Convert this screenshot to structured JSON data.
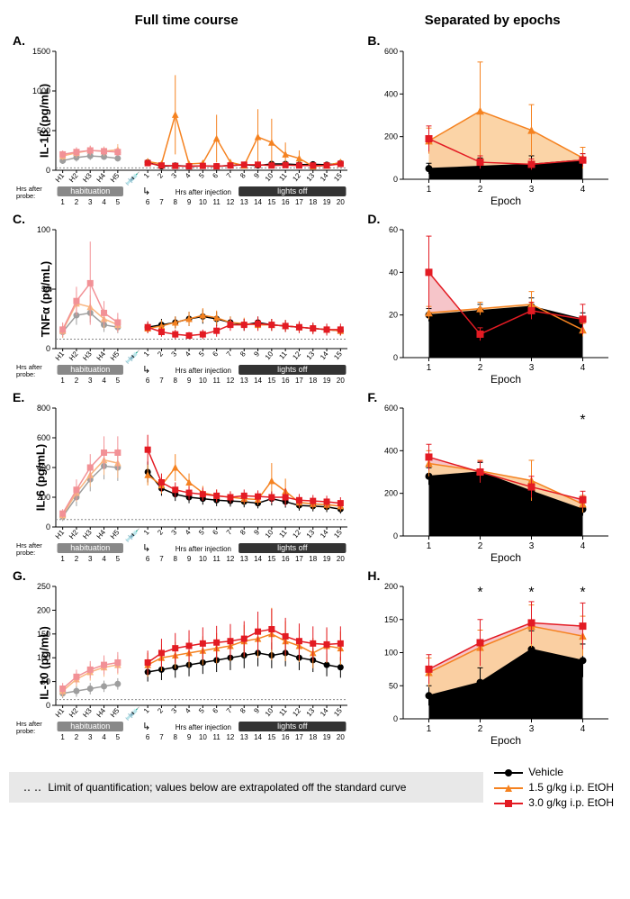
{
  "headers": {
    "left": "Full time course",
    "right": "Separated by epochs"
  },
  "colors": {
    "vehicle": "#000000",
    "etoh15": "#f58220",
    "etoh30": "#e31b23",
    "vehicle_pale": "#9e9e9e",
    "etoh15_pale": "#f9b57f",
    "etoh30_pale": "#f29196",
    "fill_black": "#000000",
    "fill_orange": "#fbcf9d",
    "fill_pink": "#f5bfc3",
    "bg": "#ffffff"
  },
  "legend": {
    "footnote": "Limit of quantification; values below\nare extrapolated off the standard curve",
    "items": [
      {
        "label": "Vehicle",
        "color": "#000000",
        "marker": "circle"
      },
      {
        "label": "1.5 g/kg i.p. EtOH",
        "color": "#f58220",
        "marker": "triangle"
      },
      {
        "label": "3.0 g/kg i.p. EtOH",
        "color": "#e31b23",
        "marker": "square"
      }
    ]
  },
  "rows": [
    {
      "ylabel": "IL-1β (pg/mL)",
      "left": {
        "letter": "A.",
        "ylim": [
          0,
          1500
        ],
        "yticks": [
          0,
          500,
          1000,
          1500
        ],
        "loq": 30,
        "hab": {
          "x": [
            "H1",
            "H2",
            "H3",
            "H4",
            "H5"
          ],
          "vehicle": [
            120,
            160,
            180,
            170,
            150
          ],
          "etoh15": [
            180,
            220,
            250,
            240,
            260
          ],
          "etoh30": [
            200,
            230,
            250,
            240,
            230
          ],
          "err_v": [
            40,
            50,
            50,
            40,
            40
          ],
          "err_15": [
            50,
            60,
            60,
            60,
            70
          ],
          "err_30": [
            50,
            60,
            60,
            50,
            50
          ]
        },
        "post": {
          "x": [
            "1",
            "2",
            "3",
            "4",
            "5",
            "6",
            "7",
            "8",
            "9",
            "10",
            "11",
            "12",
            "13",
            "14",
            "15"
          ],
          "vehicle": [
            100,
            50,
            60,
            50,
            55,
            50,
            60,
            70,
            60,
            80,
            80,
            70,
            75,
            70,
            90
          ],
          "etoh15": [
            110,
            80,
            700,
            80,
            90,
            400,
            100,
            60,
            420,
            350,
            200,
            150,
            50,
            60,
            100
          ],
          "etoh30": [
            90,
            60,
            55,
            50,
            55,
            50,
            60,
            70,
            70,
            60,
            65,
            60,
            60,
            60,
            80
          ],
          "err_v": [
            30,
            20,
            25,
            20,
            20,
            20,
            25,
            30,
            25,
            30,
            30,
            25,
            25,
            25,
            30
          ],
          "err_15": [
            40,
            30,
            500,
            30,
            35,
            300,
            40,
            25,
            350,
            300,
            150,
            100,
            25,
            25,
            40
          ],
          "err_30": [
            30,
            25,
            25,
            20,
            20,
            20,
            25,
            30,
            30,
            25,
            25,
            25,
            25,
            25,
            30
          ]
        }
      },
      "right": {
        "letter": "B.",
        "ylim": [
          0,
          600
        ],
        "yticks": [
          0,
          200,
          400,
          600
        ],
        "epochs": [
          1,
          2,
          3,
          4
        ],
        "vehicle": [
          50,
          60,
          70,
          90
        ],
        "etoh15": [
          180,
          320,
          230,
          100
        ],
        "etoh30": [
          190,
          80,
          70,
          90
        ],
        "err_v": [
          25,
          40,
          40,
          30
        ],
        "err_15": [
          60,
          230,
          120,
          50
        ],
        "err_30": [
          60,
          30,
          25,
          30
        ],
        "stars": []
      }
    },
    {
      "ylabel": "TNFα (pg/mL)",
      "left": {
        "letter": "C.",
        "ylim": [
          0,
          100
        ],
        "yticks": [
          0,
          50,
          100
        ],
        "loq": 8,
        "hab": {
          "x": [
            "H1",
            "H2",
            "H3",
            "H4",
            "H5"
          ],
          "vehicle": [
            14,
            28,
            30,
            20,
            18
          ],
          "etoh15": [
            15,
            38,
            35,
            25,
            20
          ],
          "etoh30": [
            16,
            40,
            55,
            30,
            22
          ],
          "err_v": [
            5,
            8,
            8,
            6,
            5
          ],
          "err_15": [
            6,
            10,
            10,
            8,
            6
          ],
          "err_30": [
            6,
            12,
            35,
            10,
            8
          ]
        },
        "post": {
          "x": [
            "1",
            "2",
            "3",
            "4",
            "5",
            "6",
            "7",
            "8",
            "9",
            "10",
            "11",
            "12",
            "13",
            "14",
            "15"
          ],
          "vehicle": [
            18,
            20,
            22,
            25,
            27,
            25,
            22,
            20,
            22,
            20,
            19,
            18,
            17,
            16,
            15
          ],
          "etoh15": [
            17,
            19,
            22,
            25,
            28,
            26,
            22,
            21,
            20,
            20,
            19,
            18,
            17,
            16,
            15
          ],
          "etoh30": [
            18,
            14,
            12,
            11,
            12,
            15,
            20,
            20,
            21,
            20,
            19,
            18,
            17,
            16,
            16
          ],
          "err_v": [
            4,
            5,
            5,
            6,
            6,
            6,
            5,
            5,
            5,
            5,
            5,
            4,
            4,
            4,
            4
          ],
          "err_15": [
            4,
            5,
            5,
            6,
            6,
            6,
            5,
            5,
            5,
            5,
            5,
            4,
            4,
            4,
            4
          ],
          "err_30": [
            5,
            4,
            4,
            3,
            4,
            5,
            5,
            5,
            6,
            5,
            5,
            5,
            5,
            5,
            5
          ]
        }
      },
      "right": {
        "letter": "D.",
        "ylim": [
          0,
          60
        ],
        "yticks": [
          0,
          20,
          40,
          60
        ],
        "epochs": [
          1,
          2,
          3,
          4
        ],
        "vehicle": [
          20,
          22,
          24,
          18
        ],
        "etoh15": [
          21,
          23,
          25,
          13
        ],
        "etoh30": [
          40,
          11,
          22,
          18
        ],
        "err_v": [
          3,
          3,
          4,
          3
        ],
        "err_15": [
          3,
          3,
          6,
          3
        ],
        "err_30": [
          17,
          3,
          4,
          7
        ],
        "stars": []
      }
    },
    {
      "ylabel": "IL-6 (pg/mL)",
      "left": {
        "letter": "E.",
        "ylim": [
          0,
          800
        ],
        "yticks": [
          0,
          200,
          400,
          600,
          800
        ],
        "loq": 50,
        "hab": {
          "x": [
            "H1",
            "H2",
            "H3",
            "H4",
            "H5"
          ],
          "vehicle": [
            70,
            200,
            320,
            410,
            400
          ],
          "etoh15": [
            80,
            230,
            350,
            450,
            430
          ],
          "etoh30": [
            90,
            250,
            400,
            500,
            500
          ],
          "err_v": [
            30,
            60,
            80,
            90,
            90
          ],
          "err_15": [
            30,
            60,
            80,
            100,
            100
          ],
          "err_30": [
            30,
            70,
            90,
            110,
            110
          ]
        },
        "post": {
          "x": [
            "1",
            "2",
            "3",
            "4",
            "5",
            "6",
            "7",
            "8",
            "9",
            "10",
            "11",
            "12",
            "13",
            "14",
            "15"
          ],
          "vehicle": [
            370,
            260,
            220,
            200,
            190,
            180,
            175,
            170,
            160,
            190,
            170,
            145,
            140,
            135,
            120
          ],
          "etoh15": [
            350,
            280,
            400,
            300,
            230,
            210,
            200,
            190,
            185,
            310,
            240,
            165,
            155,
            150,
            140
          ],
          "etoh30": [
            520,
            300,
            250,
            230,
            220,
            210,
            200,
            210,
            205,
            200,
            200,
            180,
            175,
            170,
            160
          ],
          "err_v": [
            70,
            50,
            45,
            40,
            40,
            40,
            38,
            38,
            35,
            45,
            40,
            35,
            35,
            35,
            30
          ],
          "err_15": [
            70,
            55,
            90,
            60,
            46,
            42,
            40,
            38,
            37,
            120,
            85,
            36,
            35,
            35,
            35
          ],
          "err_30": [
            100,
            60,
            50,
            46,
            44,
            42,
            40,
            42,
            41,
            40,
            60,
            42,
            40,
            40,
            40
          ]
        }
      },
      "right": {
        "letter": "F.",
        "ylim": [
          0,
          600
        ],
        "yticks": [
          0,
          200,
          400,
          600
        ],
        "epochs": [
          1,
          2,
          3,
          4
        ],
        "vehicle": [
          280,
          300,
          210,
          125
        ],
        "etoh15": [
          340,
          305,
          260,
          150
        ],
        "etoh30": [
          370,
          300,
          230,
          170
        ],
        "err_v": [
          40,
          45,
          45,
          30
        ],
        "err_15": [
          60,
          50,
          95,
          40
        ],
        "err_30": [
          60,
          50,
          50,
          40
        ],
        "stars": [
          {
            "epoch": 4,
            "y": 540
          }
        ]
      }
    },
    {
      "ylabel": "IL-10 (pg/mL)",
      "left": {
        "letter": "G.",
        "ylim": [
          0,
          250
        ],
        "yticks": [
          0,
          50,
          100,
          150,
          200,
          250
        ],
        "loq": 12,
        "hab": {
          "x": [
            "H1",
            "H2",
            "H3",
            "H4",
            "H5"
          ],
          "vehicle": [
            25,
            30,
            35,
            40,
            45
          ],
          "etoh15": [
            30,
            55,
            70,
            80,
            85
          ],
          "etoh30": [
            35,
            60,
            75,
            85,
            90
          ],
          "err_v": [
            10,
            12,
            12,
            12,
            12
          ],
          "err_15": [
            12,
            15,
            18,
            20,
            20
          ],
          "err_30": [
            12,
            15,
            18,
            20,
            22
          ]
        },
        "post": {
          "x": [
            "1",
            "2",
            "3",
            "4",
            "5",
            "6",
            "7",
            "8",
            "9",
            "10",
            "11",
            "12",
            "13",
            "14",
            "15"
          ],
          "vehicle": [
            70,
            75,
            80,
            85,
            90,
            95,
            100,
            105,
            110,
            105,
            110,
            100,
            95,
            85,
            80
          ],
          "etoh15": [
            85,
            100,
            105,
            110,
            115,
            120,
            125,
            135,
            140,
            150,
            135,
            125,
            110,
            125,
            120
          ],
          "etoh30": [
            90,
            110,
            120,
            125,
            130,
            132,
            135,
            140,
            155,
            160,
            145,
            135,
            130,
            128,
            130
          ],
          "err_v": [
            20,
            22,
            22,
            24,
            24,
            25,
            26,
            27,
            28,
            27,
            28,
            26,
            25,
            24,
            22
          ],
          "err_15": [
            25,
            28,
            28,
            30,
            30,
            32,
            32,
            34,
            40,
            55,
            42,
            34,
            32,
            36,
            35
          ],
          "err_30": [
            25,
            30,
            32,
            33,
            34,
            35,
            36,
            37,
            42,
            43,
            39,
            37,
            36,
            36,
            36
          ]
        }
      },
      "right": {
        "letter": "H.",
        "ylim": [
          0,
          200
        ],
        "yticks": [
          0,
          50,
          100,
          150,
          200
        ],
        "epochs": [
          1,
          2,
          3,
          4
        ],
        "vehicle": [
          35,
          55,
          105,
          88
        ],
        "etoh15": [
          70,
          108,
          140,
          125
        ],
        "etoh30": [
          75,
          115,
          145,
          140
        ],
        "err_v": [
          15,
          22,
          28,
          25
        ],
        "err_15": [
          22,
          26,
          32,
          30
        ],
        "err_30": [
          22,
          35,
          32,
          35
        ],
        "stars": [
          {
            "epoch": 2,
            "y": 190
          },
          {
            "epoch": 3,
            "y": 190
          },
          {
            "epoch": 4,
            "y": 190
          }
        ]
      }
    }
  ],
  "axis_annotations": {
    "hrs_after_probe": "Hrs after\nprobe:",
    "habituation": "habituation",
    "hrs_after_injection": "Hrs after injection",
    "lights_off": "lights off",
    "probe_nums": [
      "1",
      "2",
      "3",
      "4",
      "5"
    ],
    "post_nums": [
      "6",
      "7",
      "8",
      "9",
      "10",
      "11",
      "12",
      "13",
      "14",
      "15",
      "16",
      "17",
      "18",
      "19",
      "20"
    ],
    "epoch_label": "Epoch"
  }
}
